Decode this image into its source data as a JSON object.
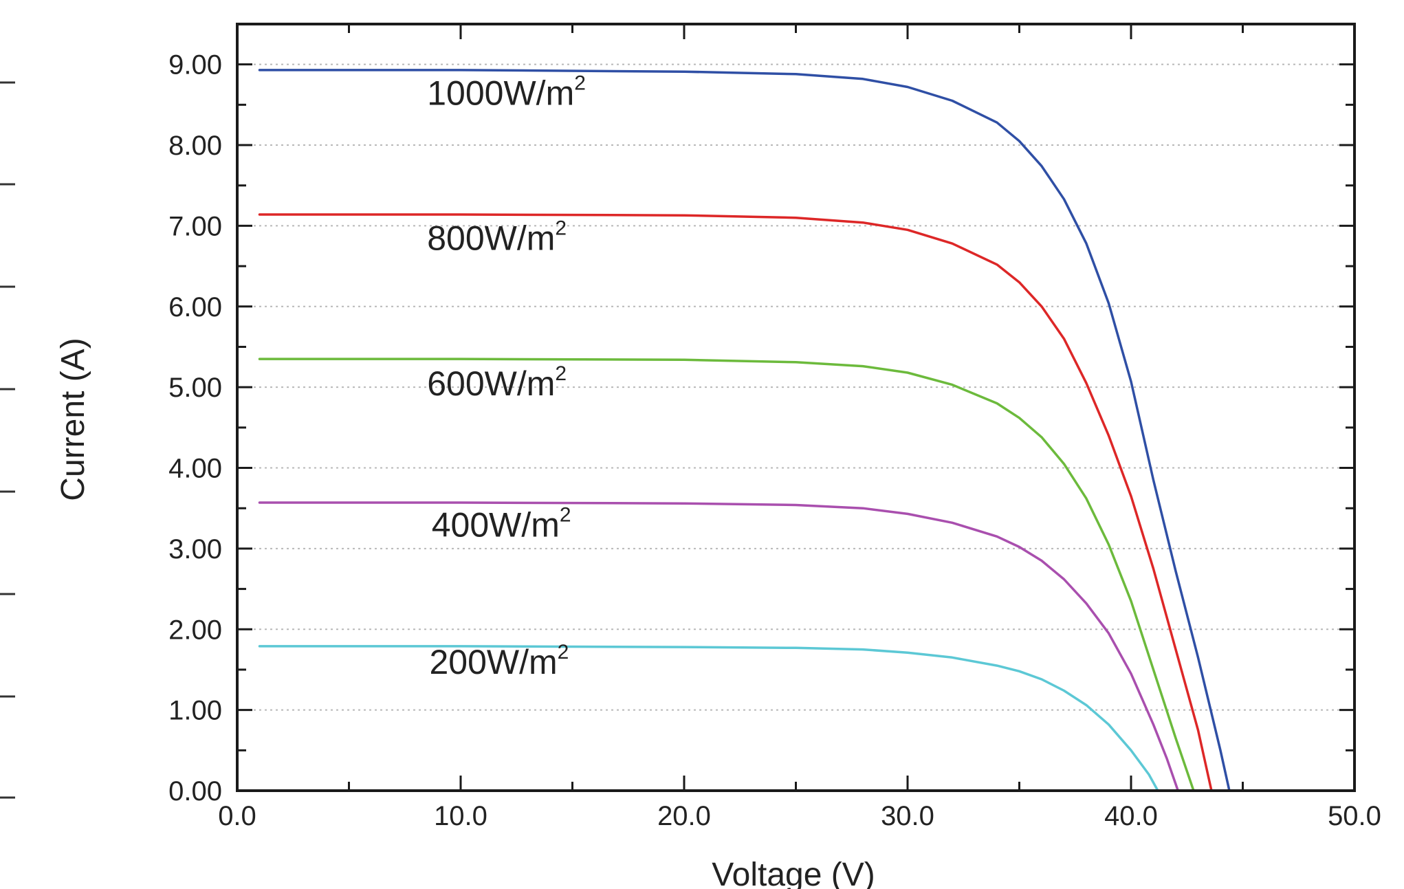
{
  "chart_data": {
    "type": "line",
    "title": "",
    "xlabel": "Voltage (V)",
    "ylabel": "Current (A)",
    "xlim": [
      0,
      50
    ],
    "ylim": [
      0,
      9.5
    ],
    "xticks": [
      "0.0",
      "10.0",
      "20.0",
      "30.0",
      "40.0",
      "50.0"
    ],
    "yticks": [
      "0.00",
      "1.00",
      "2.00",
      "3.00",
      "4.00",
      "5.00",
      "6.00",
      "7.00",
      "8.00",
      "9.00"
    ],
    "grid": "horizontal dotted",
    "legend": "none; series labelled inline above each curve",
    "series": [
      {
        "name": "1000W/m2",
        "label": "1000W/m",
        "label_sup": "2",
        "color": "#2f4fa5",
        "label_pos": [
          8.5,
          8.5
        ],
        "x": [
          1,
          10,
          20,
          25,
          28,
          30,
          32,
          34,
          35,
          36,
          37,
          38,
          39,
          40,
          41,
          42,
          43,
          44,
          44.4
        ],
        "y": [
          8.93,
          8.93,
          8.91,
          8.88,
          8.82,
          8.72,
          8.55,
          8.28,
          8.05,
          7.74,
          7.33,
          6.78,
          6.04,
          5.07,
          3.85,
          2.72,
          1.65,
          0.5,
          0.0
        ]
      },
      {
        "name": "800W/m2",
        "label": "800W/m",
        "label_sup": "2",
        "color": "#dd2727",
        "label_pos": [
          8.5,
          6.7
        ],
        "x": [
          1,
          10,
          20,
          25,
          28,
          30,
          32,
          34,
          35,
          36,
          37,
          38,
          39,
          40,
          41,
          42,
          43,
          43.6
        ],
        "y": [
          7.14,
          7.14,
          7.13,
          7.1,
          7.04,
          6.95,
          6.78,
          6.52,
          6.3,
          6.0,
          5.6,
          5.05,
          4.4,
          3.65,
          2.75,
          1.75,
          0.75,
          0.0
        ]
      },
      {
        "name": "600W/m2",
        "label": "600W/m",
        "label_sup": "2",
        "color": "#6cba3c",
        "label_pos": [
          8.5,
          4.9
        ],
        "x": [
          1,
          10,
          20,
          25,
          28,
          30,
          32,
          34,
          35,
          36,
          37,
          38,
          39,
          40,
          41,
          42,
          42.8
        ],
        "y": [
          5.35,
          5.35,
          5.34,
          5.31,
          5.26,
          5.18,
          5.03,
          4.8,
          4.62,
          4.38,
          4.05,
          3.62,
          3.05,
          2.35,
          1.5,
          0.65,
          0.0
        ]
      },
      {
        "name": "400W/m2",
        "label": "400W/m",
        "label_sup": "2",
        "color": "#a94fae",
        "label_pos": [
          8.7,
          3.15
        ],
        "x": [
          1,
          10,
          20,
          25,
          28,
          30,
          32,
          34,
          35,
          36,
          37,
          38,
          39,
          40,
          41,
          41.6,
          42.1
        ],
        "y": [
          3.57,
          3.57,
          3.56,
          3.54,
          3.5,
          3.43,
          3.32,
          3.15,
          3.02,
          2.85,
          2.62,
          2.32,
          1.95,
          1.45,
          0.82,
          0.4,
          0.0
        ]
      },
      {
        "name": "200W/m2",
        "label": "200W/m",
        "label_sup": "2",
        "color": "#5cc8d5",
        "label_pos": [
          8.6,
          1.45
        ],
        "x": [
          1,
          10,
          20,
          25,
          28,
          30,
          32,
          34,
          35,
          36,
          37,
          38,
          39,
          40,
          40.8,
          41.2
        ],
        "y": [
          1.79,
          1.79,
          1.78,
          1.77,
          1.75,
          1.71,
          1.65,
          1.55,
          1.48,
          1.38,
          1.24,
          1.06,
          0.82,
          0.5,
          0.2,
          0.0
        ]
      }
    ]
  }
}
